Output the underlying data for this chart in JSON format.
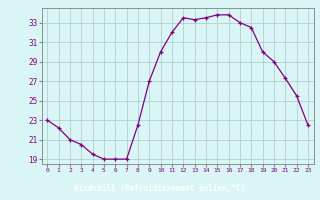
{
  "hours": [
    0,
    1,
    2,
    3,
    4,
    5,
    6,
    7,
    8,
    9,
    10,
    11,
    12,
    13,
    14,
    15,
    16,
    17,
    18,
    19,
    20,
    21,
    22,
    23
  ],
  "values": [
    23.0,
    22.2,
    21.0,
    20.5,
    19.5,
    19.0,
    19.0,
    19.0,
    22.5,
    27.0,
    30.0,
    32.0,
    33.5,
    33.3,
    33.5,
    33.8,
    33.8,
    33.0,
    32.5,
    30.0,
    29.0,
    27.3,
    25.5,
    22.5
  ],
  "line_color": "#800080",
  "marker": "+",
  "bg_color": "#d9f5f5",
  "grid_color": "#b0d0d0",
  "xlabel": "Windchill (Refroidissement éolien,°C)",
  "xlabel_color": "#ffffff",
  "xlabel_bg": "#800080",
  "ylabel_ticks": [
    19,
    21,
    23,
    25,
    27,
    29,
    31,
    33
  ],
  "xlim": [
    -0.5,
    23.5
  ],
  "ylim": [
    18.5,
    34.5
  ],
  "tick_label_color": "#800080",
  "axis_color": "#808080"
}
